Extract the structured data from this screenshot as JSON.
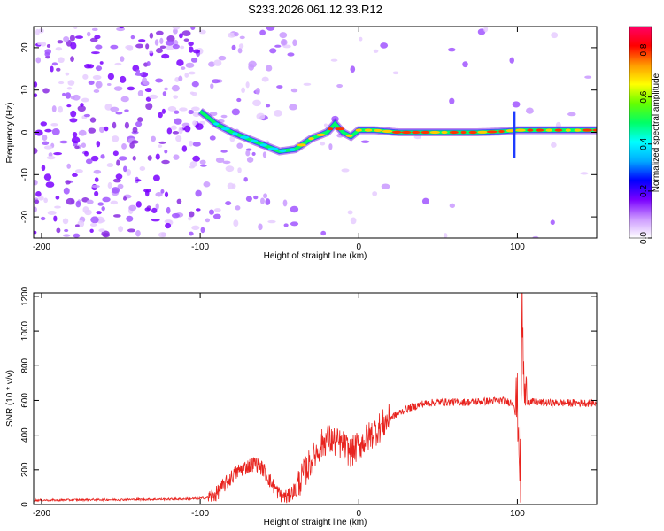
{
  "title": "S233.2026.061.12.33.R12",
  "colors": {
    "snr_line": "#e8231e",
    "cbar": [
      "#ffffff",
      "#cc99ff",
      "#7a00ff",
      "#0000ff",
      "#00aaff",
      "#00ffff",
      "#00ff66",
      "#66ff00",
      "#ffff00",
      "#ff9900",
      "#ff0000",
      "#ff0066"
    ]
  },
  "chart_data": [
    {
      "type": "heatmap",
      "title": "",
      "xlabel": "Height of straight line (km)",
      "ylabel": "Frequency (Hz)",
      "xlim": [
        -205,
        150
      ],
      "ylim": [
        -25,
        25
      ],
      "xticks": [
        -200,
        -100,
        0,
        100
      ],
      "yticks": [
        -20,
        -10,
        0,
        10,
        20
      ],
      "colorbar": {
        "label": "Normalized spectral amplitude",
        "range": [
          0.0,
          0.9
        ],
        "ticks": [
          0.0,
          0.2,
          0.4,
          0.6,
          0.8
        ]
      },
      "ridge": {
        "x": [
          -100,
          -90,
          -80,
          -70,
          -60,
          -50,
          -40,
          -30,
          -20,
          -15,
          -10,
          -5,
          0,
          10,
          25,
          50,
          75,
          90,
          100,
          120,
          150
        ],
        "y": [
          5,
          2,
          0,
          -1.5,
          -3,
          -4.5,
          -4,
          -1.5,
          0,
          2,
          0,
          -1,
          0.5,
          0.5,
          0,
          0,
          0,
          0.2,
          0.5,
          0.5,
          0.5
        ]
      }
    },
    {
      "type": "line",
      "title": "",
      "xlabel": "Height of straight line (km)",
      "ylabel": "SNR (10 * v/v)",
      "xlim": [
        -205,
        150
      ],
      "ylim": [
        0,
        1220
      ],
      "xticks": [
        -200,
        -100,
        0,
        100
      ],
      "yticks": [
        0,
        200,
        400,
        600,
        800,
        1000,
        1200
      ],
      "series": [
        {
          "name": "SNR",
          "x": [
            -205,
            -190,
            -170,
            -150,
            -130,
            -110,
            -100,
            -95,
            -90,
            -85,
            -80,
            -75,
            -70,
            -65,
            -60,
            -55,
            -50,
            -45,
            -40,
            -35,
            -30,
            -25,
            -20,
            -15,
            -10,
            -5,
            0,
            5,
            10,
            15,
            20,
            30,
            40,
            50,
            60,
            70,
            80,
            90,
            95,
            100,
            102,
            103,
            104,
            105,
            110,
            120,
            130,
            140,
            150
          ],
          "y": [
            25,
            25,
            28,
            28,
            30,
            32,
            35,
            40,
            60,
            110,
            160,
            200,
            220,
            240,
            200,
            120,
            60,
            40,
            90,
            170,
            250,
            330,
            380,
            360,
            340,
            300,
            340,
            380,
            420,
            460,
            500,
            550,
            580,
            590,
            590,
            590,
            595,
            600,
            590,
            580,
            150,
            1210,
            700,
            600,
            590,
            585,
            585,
            585,
            585
          ]
        }
      ]
    }
  ]
}
